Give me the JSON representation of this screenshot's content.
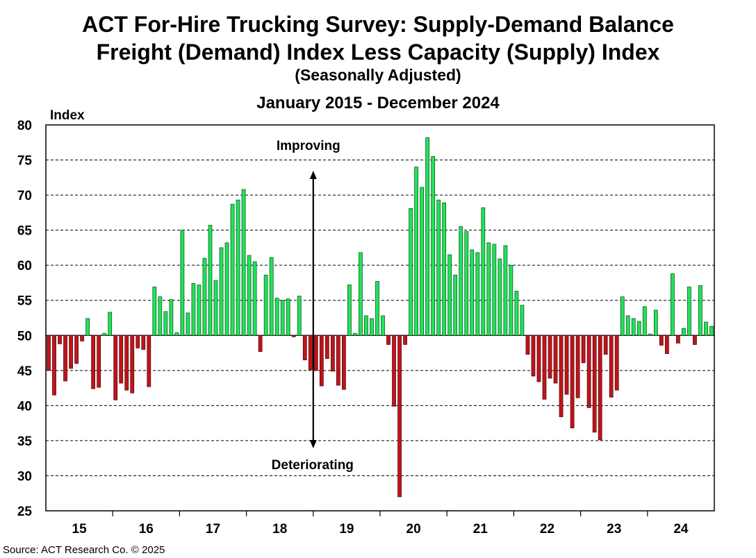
{
  "title": "ACT For-Hire Trucking Survey: Supply-Demand Balance",
  "subtitle": "Freight (Demand) Index Less Capacity (Supply) Index",
  "subtitle2": "(Seasonally Adjusted)",
  "date_range": "January 2015 - December 2024",
  "source": "Source:  ACT Research Co. © 2025",
  "colors": {
    "positive": "#22e35a",
    "negative": "#c0141c",
    "positive_stroke": "#0a5a1f",
    "negative_stroke": "#5a0a0a"
  },
  "chart_data": {
    "type": "bar",
    "ylabel": "Index",
    "ylim": [
      25,
      80
    ],
    "yticks": [
      25,
      30,
      35,
      40,
      45,
      50,
      55,
      60,
      65,
      70,
      75,
      80
    ],
    "baseline": 50,
    "grid": "horizontal-dashed",
    "x_start": "2015-01",
    "x_end": "2024-12",
    "year_labels": [
      "15",
      "16",
      "17",
      "18",
      "19",
      "20",
      "21",
      "22",
      "23",
      "24"
    ],
    "annotations": {
      "improving": "Improving",
      "deteriorating": "Deteriorating"
    },
    "values": [
      45.0,
      41.5,
      48.8,
      43.5,
      45.3,
      46.0,
      49.2,
      52.4,
      42.4,
      42.6,
      50.3,
      53.3,
      40.8,
      43.2,
      42.2,
      41.8,
      48.2,
      48.0,
      42.7,
      56.9,
      55.5,
      53.4,
      55.1,
      50.4,
      65.0,
      53.2,
      57.4,
      57.2,
      61.0,
      65.7,
      57.8,
      62.5,
      63.2,
      68.7,
      69.3,
      70.8,
      61.4,
      60.5,
      47.7,
      58.6,
      61.1,
      55.3,
      55.0,
      55.2,
      49.8,
      55.6,
      46.5,
      45.1,
      45.0,
      42.8,
      46.7,
      44.9,
      42.9,
      42.3,
      57.2,
      50.3,
      61.8,
      52.8,
      52.4,
      57.7,
      52.8,
      48.7,
      39.9,
      27.0,
      48.7,
      68.1,
      74.0,
      71.1,
      78.2,
      75.5,
      69.3,
      68.9,
      61.5,
      58.6,
      65.5,
      64.8,
      62.2,
      61.8,
      68.2,
      63.2,
      63.0,
      60.9,
      62.8,
      60.0,
      56.3,
      54.3,
      47.3,
      44.2,
      43.4,
      40.9,
      43.9,
      43.2,
      38.4,
      41.6,
      36.8,
      41.1,
      46.1,
      39.7,
      36.2,
      35.1,
      47.3,
      41.2,
      42.2,
      55.5,
      52.8,
      52.4,
      52.0,
      54.1,
      50.2,
      53.6,
      48.6,
      47.4,
      58.8,
      48.9,
      51.0,
      56.9,
      48.7,
      57.1,
      51.9,
      51.3
    ]
  }
}
